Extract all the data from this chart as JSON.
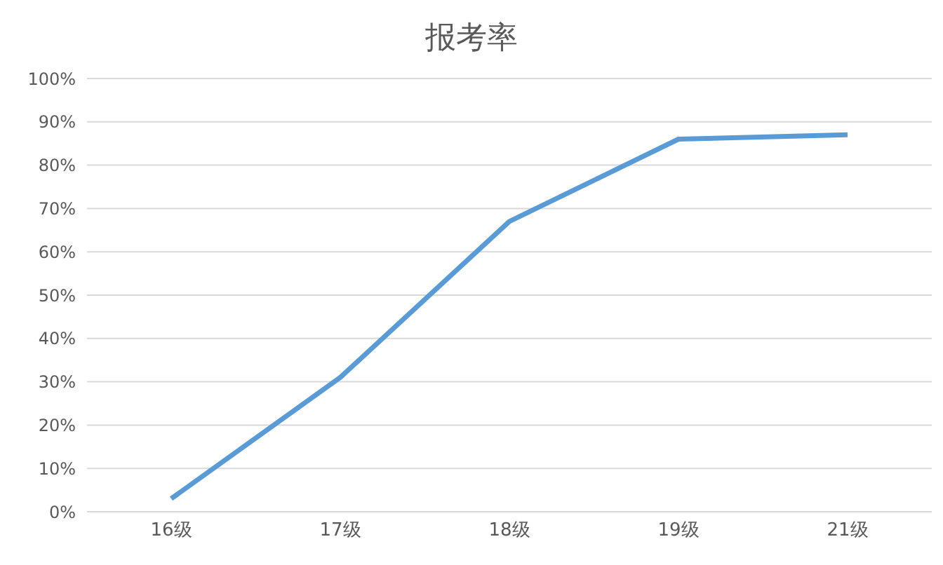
{
  "chart_data": {
    "type": "line",
    "title": "报考率",
    "categories": [
      "16级",
      "17级",
      "18级",
      "19级",
      "21级"
    ],
    "series": [
      {
        "color": "#5b9bd5",
        "values": [
          3,
          31,
          67,
          86,
          87
        ]
      }
    ],
    "ylim": [
      0,
      100
    ],
    "yticks": [
      {
        "value": 0,
        "label": "0%"
      },
      {
        "value": 10,
        "label": "10%"
      },
      {
        "value": 20,
        "label": "20%"
      },
      {
        "value": 30,
        "label": "30%"
      },
      {
        "value": 40,
        "label": "40%"
      },
      {
        "value": 50,
        "label": "50%"
      },
      {
        "value": 60,
        "label": "60%"
      },
      {
        "value": 70,
        "label": "70%"
      },
      {
        "value": 80,
        "label": "80%"
      },
      {
        "value": 90,
        "label": "90%"
      },
      {
        "value": 100,
        "label": "100%"
      }
    ],
    "grid": "y",
    "marker": "none",
    "line_style": "solid",
    "legend": false
  }
}
